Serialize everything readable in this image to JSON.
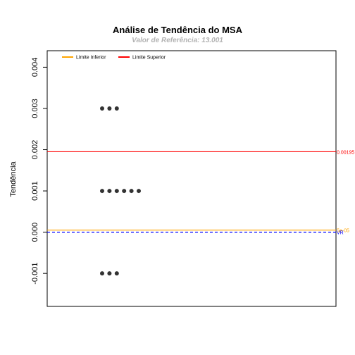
{
  "chart_data": {
    "type": "scatter",
    "title": "Análise de Tendência do MSA",
    "subtitle": "Valor de Referência: 13.001",
    "ylabel": "Tendência",
    "xlabel": "",
    "ylim": [
      -0.0018,
      0.0044
    ],
    "yticks": [
      -0.001,
      0.0,
      0.001,
      0.002,
      0.003,
      0.004
    ],
    "ytick_labels": [
      "-0.001",
      "0.000",
      "0.001",
      "0.002",
      "0.003",
      "0.004"
    ],
    "grid": false,
    "legend_position": "top-left",
    "legend": [
      {
        "label": "Limite Inferior",
        "color": "#FFA500"
      },
      {
        "label": "Limite Superior",
        "color": "#FF0000"
      }
    ],
    "points": {
      "color": "#333333",
      "rows": [
        {
          "y": 0.003,
          "count": 3
        },
        {
          "y": 0.001,
          "count": 6
        },
        {
          "y": -0.001,
          "count": 3
        }
      ]
    },
    "hlines": [
      {
        "name": "Limite Superior",
        "y": 0.00195,
        "color": "#FF0000",
        "style": "solid",
        "label": "0.00195"
      },
      {
        "name": "Limite Inferior",
        "y": 5e-05,
        "color": "#FFA500",
        "style": "solid",
        "label": "5e-05"
      },
      {
        "name": "VR",
        "y": 0.0,
        "color": "#0000FF",
        "style": "dashed",
        "label": "VR"
      }
    ]
  }
}
